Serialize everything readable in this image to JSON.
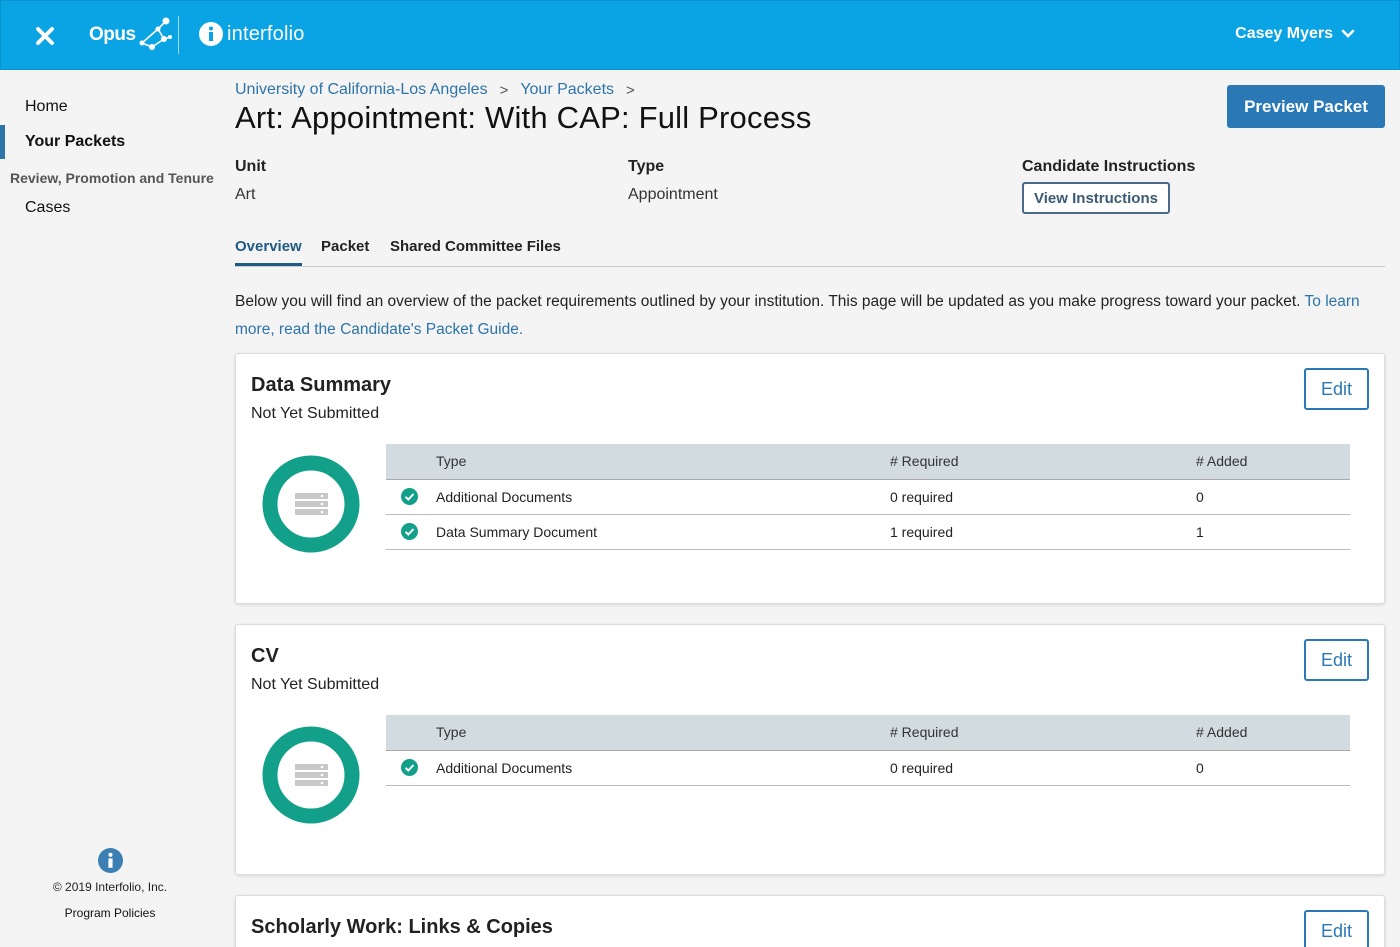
{
  "topbar": {
    "opus_label": "Opus",
    "interfolio_label": "interfolio",
    "user_name": "Casey Myers",
    "brand_color": "#0aa3e4"
  },
  "sidebar": {
    "items": [
      {
        "label": "Home"
      },
      {
        "label": "Your Packets",
        "active": true
      }
    ],
    "section_label": "Review, Promotion and Tenure",
    "section_items": [
      {
        "label": "Cases"
      }
    ],
    "copyright": "© 2019 Interfolio, Inc.",
    "policies": "Program Policies"
  },
  "breadcrumb": [
    {
      "label": "University of California-Los Angeles"
    },
    {
      "label": "Your Packets"
    }
  ],
  "page": {
    "title": "Art: Appointment: With CAP: Full Process",
    "preview_button": "Preview Packet",
    "meta": {
      "unit_label": "Unit",
      "unit_value": "Art",
      "type_label": "Type",
      "type_value": "Appointment",
      "instructions_label": "Candidate Instructions",
      "instructions_button": "View Instructions"
    },
    "tabs": [
      {
        "label": "Overview",
        "active": true
      },
      {
        "label": "Packet"
      },
      {
        "label": "Shared Committee Files"
      }
    ],
    "intro_text": "Below you will find an overview of the packet requirements outlined by your institution. This page will be updated as you make progress toward your packet.",
    "intro_link": "To learn more, read the Candidate's Packet Guide."
  },
  "table_headers": {
    "type": "Type",
    "required": "# Required",
    "added": "# Added"
  },
  "sections": [
    {
      "title": "Data Summary",
      "status": "Not Yet Submitted",
      "edit_label": "Edit",
      "rows": [
        {
          "type": "Additional Documents",
          "required": "0 required",
          "added": "0"
        },
        {
          "type": "Data Summary Document",
          "required": "1 required",
          "added": "1"
        }
      ]
    },
    {
      "title": "CV",
      "status": "Not Yet Submitted",
      "edit_label": "Edit",
      "rows": [
        {
          "type": "Additional Documents",
          "required": "0 required",
          "added": "0"
        }
      ]
    },
    {
      "title": "Scholarly Work: Links & Copies",
      "edit_label": "Edit"
    }
  ],
  "colors": {
    "accent": "#2a79b6",
    "complete": "#12a08a",
    "tab_active": "#1e5a84"
  }
}
